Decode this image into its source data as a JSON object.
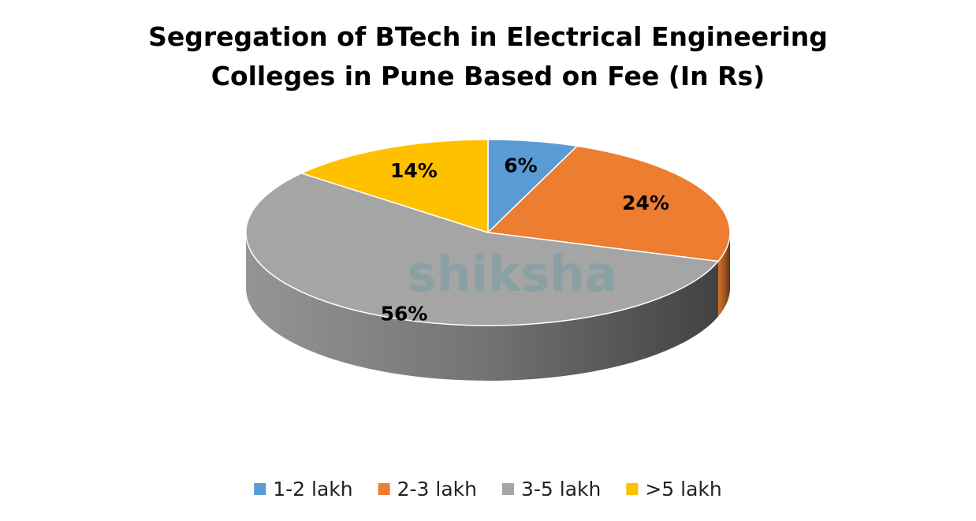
{
  "chart_data": {
    "type": "pie",
    "title": "Segregation of BTech in Electrical Engineering Colleges in Pune Based on Fee (In Rs)",
    "categories": [
      "1-2 lakh",
      "2-3 lakh",
      "3-5 lakh",
      ">5 lakh"
    ],
    "values": [
      6,
      24,
      56,
      14
    ],
    "value_labels": [
      "6%",
      "24%",
      "56%",
      "14%"
    ],
    "colors": [
      "#5b9bd5",
      "#ed7d31",
      "#a5a5a5",
      "#ffc000"
    ],
    "legend": "bottom",
    "watermark": "shiksha"
  }
}
